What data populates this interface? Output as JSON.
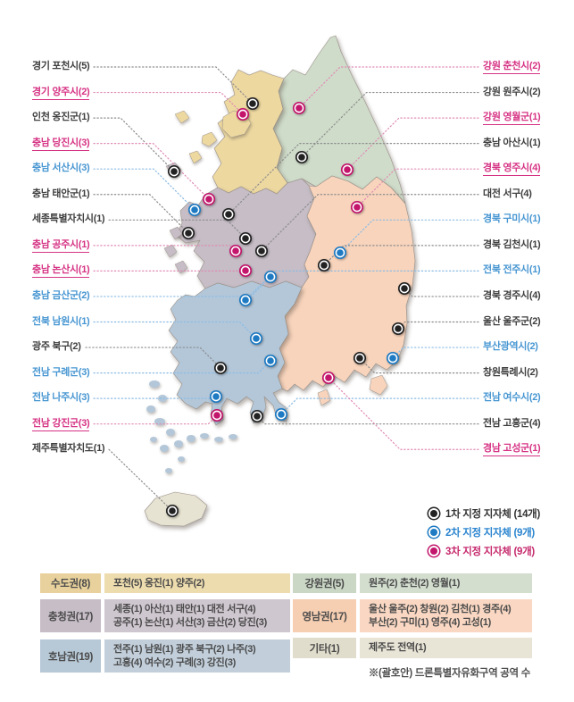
{
  "legend": {
    "items": [
      {
        "label": "1차 지정 지자체 (14개)",
        "tier": 1
      },
      {
        "label": "2차 지정 지자체 (9개)",
        "tier": 2
      },
      {
        "label": "3차 지정 지자체 (9개)",
        "tier": 3
      }
    ]
  },
  "map_labels": {
    "left": [
      {
        "text": "경기 포천시(5)",
        "tier": 1,
        "dot": [
          283,
          116
        ]
      },
      {
        "text": "경기 양주시(2)",
        "tier": 3,
        "dot": [
          272,
          128
        ]
      },
      {
        "text": "인천 옹진군(1)",
        "tier": 1,
        "dot": [
          195,
          192
        ]
      },
      {
        "text": "충남 당진시(3)",
        "tier": 3,
        "dot": [
          234,
          223
        ]
      },
      {
        "text": "충남 서산시(3)",
        "tier": 2,
        "dot": [
          218,
          235
        ]
      },
      {
        "text": "충남 태안군(1)",
        "tier": 1,
        "dot": [
          211,
          261
        ]
      },
      {
        "text": "세종특별자치시(1)",
        "tier": 1,
        "dot": [
          275,
          267
        ]
      },
      {
        "text": "충남 공주시(1)",
        "tier": 3,
        "dot": [
          264,
          281
        ]
      },
      {
        "text": "충남 논산시(1)",
        "tier": 3,
        "dot": [
          275,
          303
        ]
      },
      {
        "text": "충남 금산군(2)",
        "tier": 2,
        "dot": [
          303,
          310
        ]
      },
      {
        "text": "전북 남원시(1)",
        "tier": 2,
        "dot": [
          287,
          379
        ]
      },
      {
        "text": "광주 북구(2)",
        "tier": 1,
        "dot": [
          247,
          412
        ]
      },
      {
        "text": "전남 구례군(3)",
        "tier": 2,
        "dot": [
          303,
          404
        ]
      },
      {
        "text": "전남 나주시(3)",
        "tier": 2,
        "dot": [
          242,
          444
        ]
      },
      {
        "text": "전남 강진군(3)",
        "tier": 3,
        "dot": [
          243,
          465
        ]
      },
      {
        "text": "제주특별자치도(1)",
        "tier": 1,
        "dot": [
          193,
          572
        ]
      }
    ],
    "right": [
      {
        "text": "강원 춘천시(2)",
        "tier": 3,
        "dot": [
          335,
          121
        ]
      },
      {
        "text": "강원 원주시(2)",
        "tier": 1,
        "dot": [
          338,
          176
        ]
      },
      {
        "text": "강원 영월군(1)",
        "tier": 3,
        "dot": [
          389,
          190
        ]
      },
      {
        "text": "충남 아산시(1)",
        "tier": 1,
        "dot": [
          256,
          240
        ]
      },
      {
        "text": "경북 영주시(4)",
        "tier": 3,
        "dot": [
          400,
          232
        ]
      },
      {
        "text": "대전 서구(4)",
        "tier": 1,
        "dot": [
          293,
          281
        ]
      },
      {
        "text": "경북 구미시(1)",
        "tier": 2,
        "dot": [
          381,
          283
        ]
      },
      {
        "text": "경북 김천시(1)",
        "tier": 1,
        "dot": [
          363,
          297
        ]
      },
      {
        "text": "전북 전주시(1)",
        "tier": 2,
        "dot": [
          275,
          336
        ]
      },
      {
        "text": "경북 경주시(4)",
        "tier": 1,
        "dot": [
          453,
          323
        ]
      },
      {
        "text": "울산 울주군(2)",
        "tier": 1,
        "dot": [
          446,
          368
        ]
      },
      {
        "text": "부산광역시(2)",
        "tier": 2,
        "dot": [
          440,
          401
        ]
      },
      {
        "text": "창원특례시(2)",
        "tier": 1,
        "dot": [
          403,
          401
        ]
      },
      {
        "text": "전남 여수시(2)",
        "tier": 2,
        "dot": [
          315,
          464
        ]
      },
      {
        "text": "전남 고흥군(4)",
        "tier": 1,
        "dot": [
          288,
          466
        ]
      },
      {
        "text": "경남 고성군(1)",
        "tier": 3,
        "dot": [
          368,
          423
        ]
      }
    ]
  },
  "table": {
    "left_rows": [
      {
        "region": "수도권(8)",
        "theme": "sudogwon",
        "lines": [
          "포천(5) 옹진(1) 양주(2)"
        ]
      },
      {
        "region": "충청권(17)",
        "theme": "chungcheong",
        "lines": [
          "세종(1) 아산(1) 태안(1) 대전 서구(4)",
          "공주(1) 논산(1) 서산(3) 금산(2) 당진(3)"
        ]
      },
      {
        "region": "호남권(19)",
        "theme": "honam",
        "lines": [
          "전주(1) 남원(1) 광주 북구(2) 나주(3)",
          "고흥(4) 여수(2) 구례(3) 강진(3)"
        ]
      }
    ],
    "right_rows": [
      {
        "region": "강원권(5)",
        "theme": "gangwon",
        "lines": [
          "원주(2) 춘천(2) 영월(1)"
        ]
      },
      {
        "region": "영남권(17)",
        "theme": "yeongnam",
        "lines": [
          "울산 울주(2) 창원(2) 김천(1) 경주(4)",
          "부산(2) 구미(1) 영주(4) 고성(1)"
        ]
      },
      {
        "region": "기타(1)",
        "theme": "gita",
        "lines": [
          "제주도 전역(1)"
        ]
      }
    ]
  },
  "footnote": "※(괄호안) 드론특별자유화구역 공역 수",
  "colors": {
    "tiers": {
      "1": {
        "dot": "#222222",
        "line": "#8d8d8d",
        "text": "#3f3f3f"
      },
      "2": {
        "dot": "#1e7ac2",
        "line": "#8cbce4",
        "text": "#4796d2"
      },
      "3": {
        "dot": "#c2156b",
        "line": "#e08cb4",
        "text": "#d63384"
      }
    },
    "legend_text": {
      "1": "#333333",
      "2": "#2a84cf",
      "3": "#c62a6d"
    },
    "regions": {
      "gyeonggi": "#edd8a0",
      "gangwon": "#cfdcca",
      "chungcheong": "#c6bdc6",
      "jeolla": "#b3c7d9",
      "gyeongsang": "#f8d4bc",
      "jeju": "#e7e3d2"
    },
    "table_themes": {
      "sudogwon": {
        "label": "#e8d19c",
        "content": "#eddcae"
      },
      "chungcheong": {
        "label": "#c6bdc6",
        "content": "#cfc7cf"
      },
      "honam": {
        "label": "#b7c8d6",
        "content": "#c2cfdb"
      },
      "gangwon": {
        "label": "#cad7c5",
        "content": "#d3decf"
      },
      "yeongnam": {
        "label": "#f6ceb2",
        "content": "#f9d7c2"
      },
      "gita": {
        "label": "#e1ddcc",
        "content": "#e8e4d6"
      }
    }
  }
}
